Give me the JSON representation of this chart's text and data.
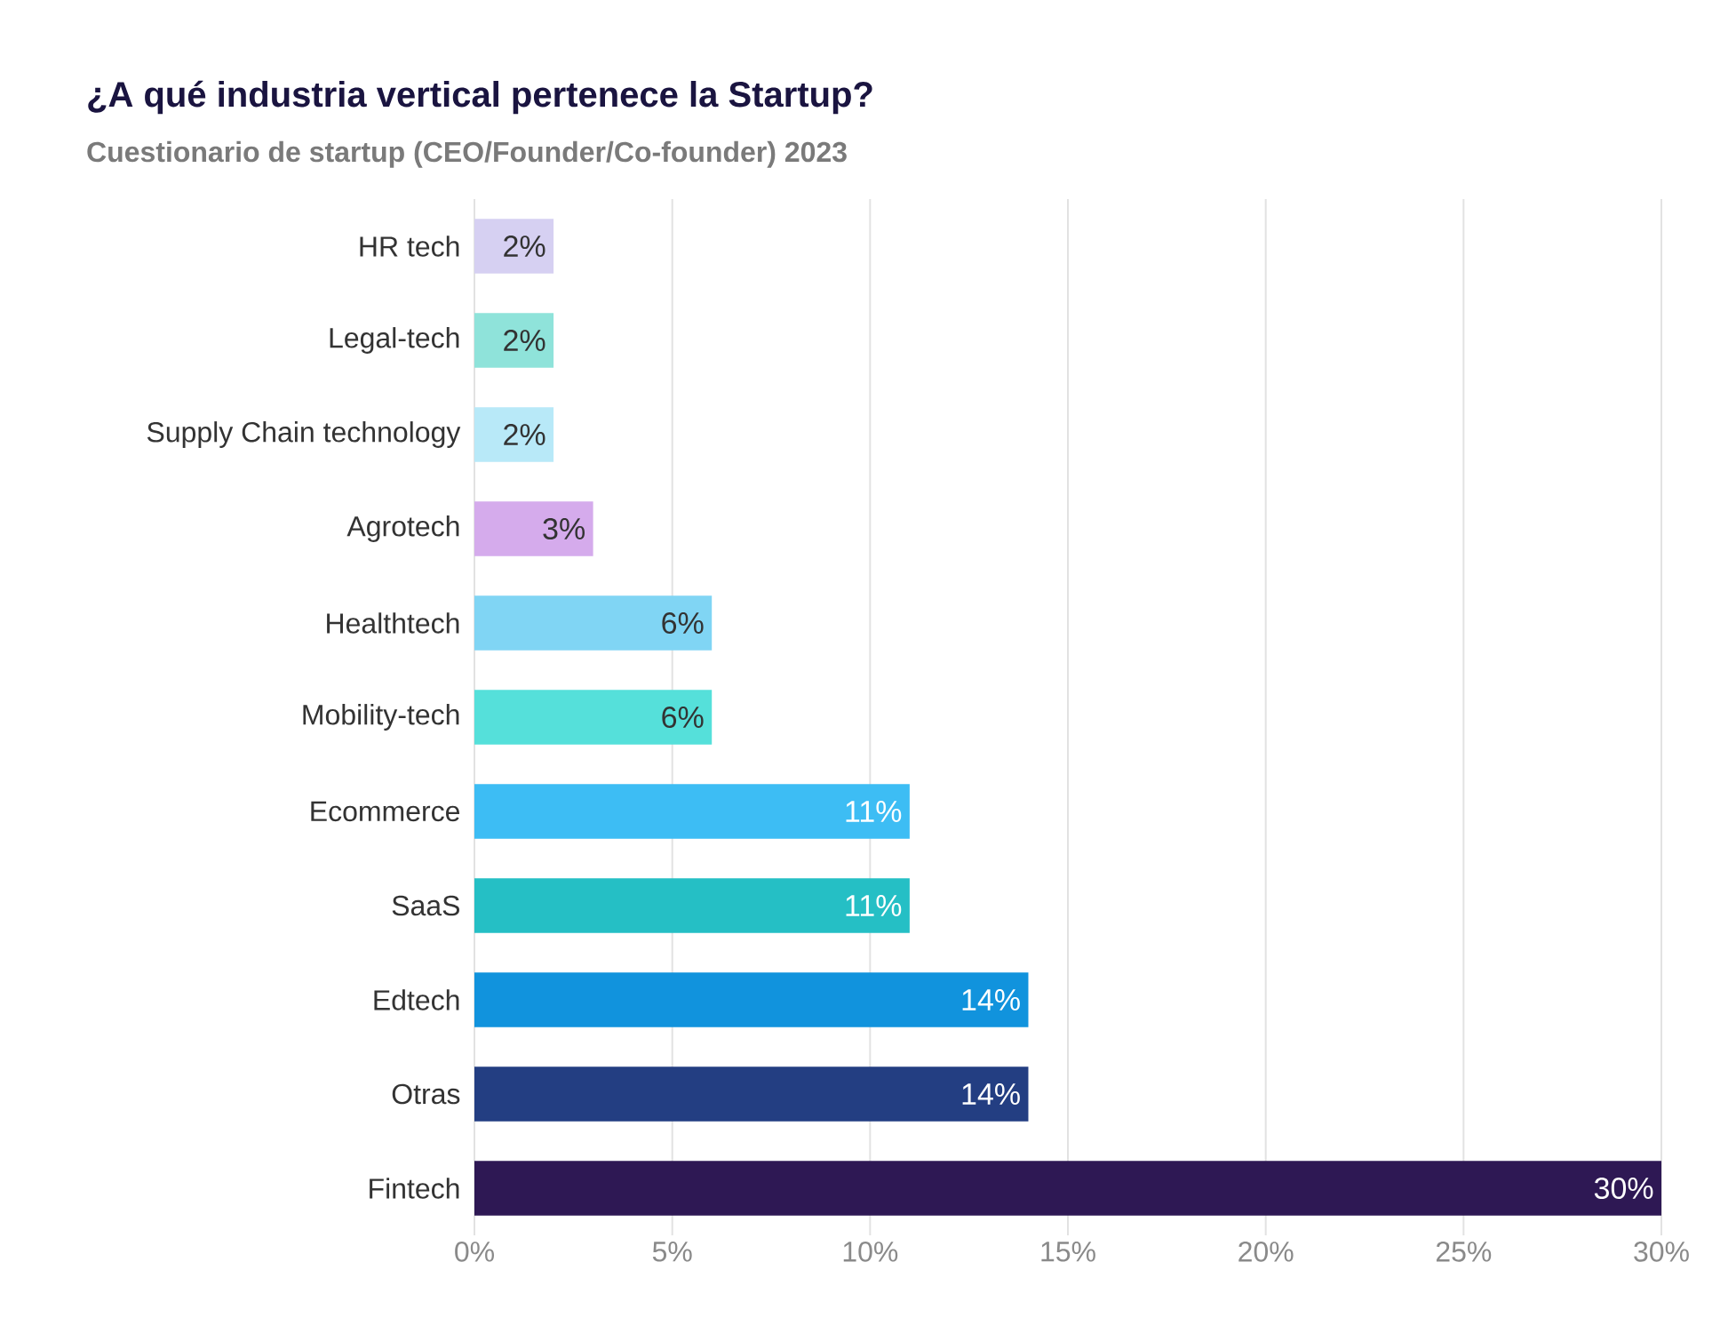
{
  "chart_data": {
    "type": "bar",
    "orientation": "horizontal",
    "title": "¿A qué industria vertical pertenece la Startup?",
    "subtitle": "Cuestionario de startup (CEO/Founder/Co-founder) 2023",
    "categories": [
      "HR tech",
      "Legal-tech",
      "Supply Chain technology",
      "Agrotech",
      "Healthtech",
      "Mobility-tech",
      "Ecommerce",
      "SaaS",
      "Edtech",
      "Otras",
      "Fintech"
    ],
    "values": [
      2,
      2,
      2,
      3,
      6,
      6,
      11,
      11,
      14,
      14,
      30
    ],
    "value_labels": [
      "2%",
      "2%",
      "2%",
      "3%",
      "6%",
      "6%",
      "11%",
      "11%",
      "14%",
      "14%",
      "30%"
    ],
    "colors": [
      "#d6d0f2",
      "#8fe3da",
      "#b8e9f8",
      "#d5abec",
      "#80d5f4",
      "#55e0da",
      "#3dbdf4",
      "#25bfc5",
      "#1193dd",
      "#233e82",
      "#2e1854"
    ],
    "xlim": [
      0,
      30
    ],
    "xticks": [
      {
        "value": 0,
        "label": "0%"
      },
      {
        "value": 5,
        "label": "5%"
      },
      {
        "value": 10,
        "label": "10%"
      },
      {
        "value": 15,
        "label": "15%"
      },
      {
        "value": 20,
        "label": "20%"
      },
      {
        "value": 25,
        "label": "25%"
      },
      {
        "value": 30,
        "label": "30%"
      }
    ],
    "grid": "x"
  }
}
